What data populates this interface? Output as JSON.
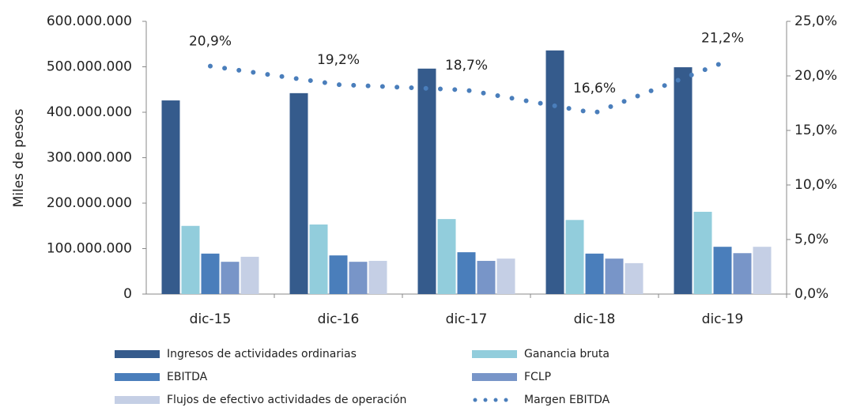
{
  "chart_data": {
    "type": "bar",
    "y_label": "Miles de pesos",
    "categories": [
      "dic-15",
      "dic-16",
      "dic-17",
      "dic-18",
      "dic-19"
    ],
    "series": [
      {
        "name": "Ingresos de actividades ordinarias",
        "color": "#355b8c",
        "values": [
          426000000,
          442000000,
          496000000,
          536000000,
          499000000
        ]
      },
      {
        "name": "Ganancia bruta",
        "color": "#92cddc",
        "values": [
          150000000,
          153000000,
          165000000,
          163000000,
          181000000
        ]
      },
      {
        "name": "EBITDA",
        "color": "#4a7ebb",
        "values": [
          89000000,
          85000000,
          92000000,
          89000000,
          104000000
        ]
      },
      {
        "name": "FCLP",
        "color": "#7895c8",
        "values": [
          71000000,
          71000000,
          73000000,
          78000000,
          90000000
        ]
      },
      {
        "name": "Flujos de efectivo actividades de operación",
        "color": "#c5cfe5",
        "values": [
          82000000,
          73000000,
          78000000,
          68000000,
          104000000
        ]
      },
      {
        "name": "Margen EBITDA",
        "color": "#4a7ebb",
        "type": "line",
        "axis": "y2",
        "values": [
          20.9,
          19.2,
          18.7,
          16.6,
          21.2
        ],
        "value_labels": [
          "20,9%",
          "19,2%",
          "18,7%",
          "16,6%",
          "21,2%"
        ]
      }
    ],
    "ylim": [
      0,
      600000000
    ],
    "yticks": [
      0,
      {
        "value": 100000000,
        "label": "100.000.000"
      },
      {
        "value": 200000000,
        "label": "200.000.000"
      },
      {
        "value": 300000000,
        "label": "300.000.000"
      },
      {
        "value": 400000000,
        "label": "400.000.000"
      },
      {
        "value": 500000000,
        "label": "500.000.000"
      },
      {
        "value": 600000000,
        "label": "600.000.000"
      }
    ],
    "y2lim": [
      0,
      25
    ],
    "y2ticks": [
      {
        "value": 0,
        "label": "0,0%"
      },
      {
        "value": 5,
        "label": "5,0%"
      },
      {
        "value": 10,
        "label": "10,0%"
      },
      {
        "value": 15,
        "label": "15,0%"
      },
      {
        "value": 20,
        "label": "20,0%"
      },
      {
        "value": 25,
        "label": "25,0%"
      }
    ]
  }
}
